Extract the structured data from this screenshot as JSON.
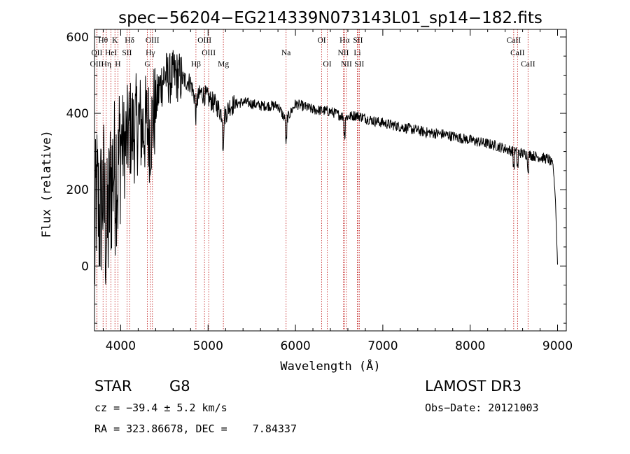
{
  "chart_data": {
    "type": "line",
    "title": "spec−56204−EG214339N073143L01_sp14−182.fits",
    "xlabel": "Wavelength (Å)",
    "ylabel": "Flux (relative)",
    "xlim": [
      3700,
      9100
    ],
    "ylim": [
      -170,
      620
    ],
    "xticks": [
      4000,
      5000,
      6000,
      7000,
      8000,
      9000
    ],
    "yticks": [
      0,
      200,
      400,
      600
    ],
    "spectrum_anchors": {
      "x": [
        3700,
        3720,
        3760,
        3800,
        3840,
        3880,
        3930,
        3970,
        4000,
        4050,
        4100,
        4150,
        4200,
        4250,
        4300,
        4340,
        4400,
        4450,
        4500,
        4560,
        4620,
        4700,
        4800,
        4860,
        4920,
        5000,
        5100,
        5180,
        5250,
        5400,
        5600,
        5800,
        5890,
        6000,
        6200,
        6400,
        6563,
        6700,
        6900,
        7100,
        7300,
        7500,
        7700,
        7900,
        8100,
        8300,
        8500,
        8600,
        8700,
        8800,
        8900,
        8950,
        8975,
        9000
      ],
      "y": [
        0,
        190,
        120,
        200,
        60,
        200,
        280,
        260,
        330,
        310,
        360,
        350,
        380,
        360,
        370,
        350,
        420,
        470,
        500,
        490,
        500,
        490,
        480,
        430,
        455,
        440,
        420,
        390,
        420,
        430,
        420,
        420,
        380,
        425,
        410,
        405,
        390,
        395,
        380,
        370,
        360,
        350,
        345,
        335,
        325,
        315,
        300,
        295,
        290,
        285,
        280,
        260,
        180,
        5
      ]
    },
    "lines": [
      {
        "label": "Hθ",
        "x": 3798,
        "row": 0
      },
      {
        "label": "K",
        "x": 3934,
        "row": 0
      },
      {
        "label": "Hδ",
        "x": 4102,
        "row": 0
      },
      {
        "label": "OIII",
        "x": 4363,
        "row": 0
      },
      {
        "label": "OIII",
        "x": 4959,
        "row": 0
      },
      {
        "label": "OI",
        "x": 6300,
        "row": 0
      },
      {
        "label": "Hα",
        "x": 6563,
        "row": 0
      },
      {
        "label": "SII",
        "x": 6716,
        "row": 0
      },
      {
        "label": "CaII",
        "x": 8498,
        "row": 0
      },
      {
        "label": "OII",
        "x": 3727,
        "row": 1
      },
      {
        "label": "HeI",
        "x": 3889,
        "row": 1
      },
      {
        "label": "SII",
        "x": 4072,
        "row": 1
      },
      {
        "label": "Hγ",
        "x": 4340,
        "row": 1
      },
      {
        "label": "OIII",
        "x": 5007,
        "row": 1
      },
      {
        "label": "Na",
        "x": 5893,
        "row": 1
      },
      {
        "label": "NII",
        "x": 6548,
        "row": 1
      },
      {
        "label": "Li",
        "x": 6708,
        "row": 1
      },
      {
        "label": "CaII",
        "x": 8542,
        "row": 1
      },
      {
        "label": "OIII",
        "x": 3727,
        "row": 2
      },
      {
        "label": "Hη",
        "x": 3835,
        "row": 2
      },
      {
        "label": "H",
        "x": 3968,
        "row": 2
      },
      {
        "label": "G",
        "x": 4305,
        "row": 2
      },
      {
        "label": "Hβ",
        "x": 4861,
        "row": 2
      },
      {
        "label": "Mg",
        "x": 5175,
        "row": 2
      },
      {
        "label": "OI",
        "x": 6364,
        "row": 2
      },
      {
        "label": "NII",
        "x": 6583,
        "row": 2
      },
      {
        "label": "SII",
        "x": 6731,
        "row": 2
      },
      {
        "label": "CaII",
        "x": 8662,
        "row": 2
      }
    ]
  },
  "footer": {
    "class_label": "STAR",
    "subclass": "G8",
    "survey": "LAMOST DR3",
    "cz": "cz = −39.4 ± 5.2 km/s",
    "obs_date": "Obs−Date: 20121003",
    "coords": "RA = 323.86678, DEC =    7.84337"
  }
}
